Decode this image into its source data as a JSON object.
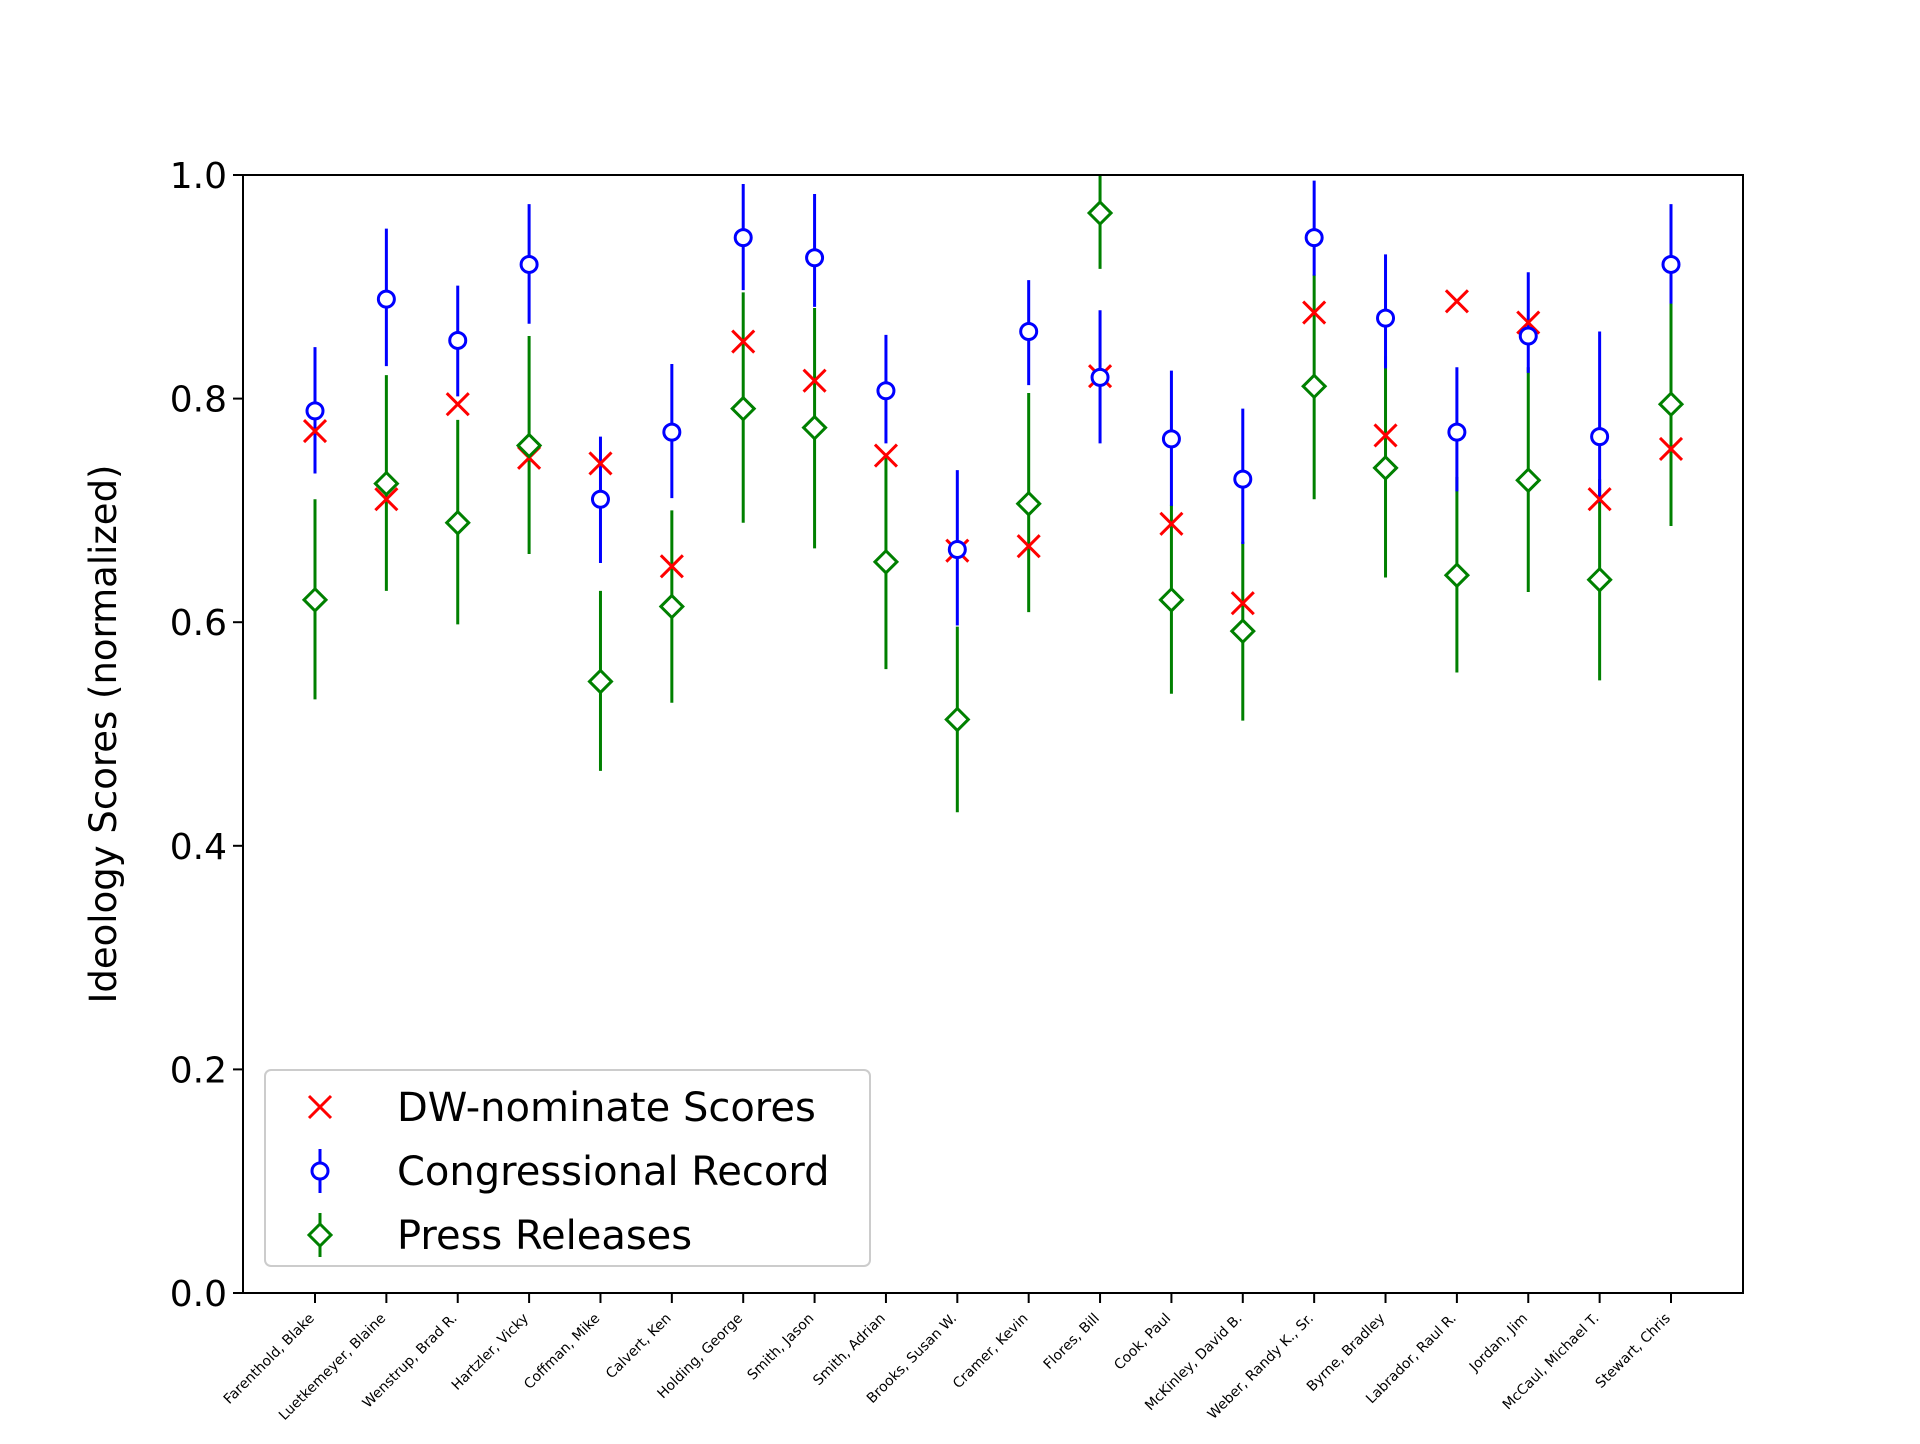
{
  "chart_data": {
    "type": "scatter",
    "title": "",
    "xlabel": "",
    "ylabel": "Ideology Scores (normalized)",
    "ylim": [
      0.0,
      1.0
    ],
    "yticks": [
      "0.0",
      "0.2",
      "0.4",
      "0.6",
      "0.8",
      "1.0"
    ],
    "grid": false,
    "legend_position": "lower-left",
    "categories": [
      "Farenthold, Blake",
      "Luetkemeyer, Blaine",
      "Wenstrup, Brad R.",
      "Hartzler, Vicky",
      "Coffman, Mike",
      "Calvert, Ken",
      "Holding, George",
      "Smith, Jason",
      "Smith, Adrian",
      "Brooks, Susan W.",
      "Cramer, Kevin",
      "Flores, Bill",
      "Cook, Paul",
      "McKinley, David B.",
      "Weber, Randy K., Sr.",
      "Byrne, Bradley",
      "Labrador, Raul R.",
      "Jordan, Jim",
      "McCaul, Michael T.",
      "Stewart, Chris"
    ],
    "series": [
      {
        "name": "DW-nominate Scores",
        "marker": "x",
        "color": "#ff0000",
        "values": [
          0.771,
          0.71,
          0.795,
          0.747,
          0.742,
          0.65,
          0.851,
          0.816,
          0.749,
          0.664,
          0.668,
          0.82,
          0.688,
          0.617,
          0.877,
          0.767,
          0.887,
          0.868,
          0.71,
          0.755
        ]
      },
      {
        "name": "Congressional Record",
        "marker": "o",
        "color": "#0000ff",
        "values": [
          0.789,
          0.889,
          0.852,
          0.92,
          0.71,
          0.77,
          0.944,
          0.926,
          0.807,
          0.665,
          0.86,
          0.819,
          0.764,
          0.728,
          0.944,
          0.872,
          0.77,
          0.856,
          0.766,
          0.92
        ],
        "err_low": [
          0.733,
          0.829,
          0.802,
          0.867,
          0.653,
          0.711,
          0.897,
          0.882,
          0.76,
          0.597,
          0.812,
          0.76,
          0.704,
          0.67,
          0.91,
          0.827,
          0.717,
          0.823,
          0.707,
          0.885
        ],
        "err_high": [
          0.846,
          0.952,
          0.901,
          0.974,
          0.766,
          0.831,
          0.992,
          0.983,
          0.857,
          0.736,
          0.906,
          0.879,
          0.825,
          0.791,
          0.995,
          0.929,
          0.828,
          0.913,
          0.86,
          0.974
        ]
      },
      {
        "name": "Press Releases",
        "marker": "D",
        "color": "#008000",
        "values": [
          0.62,
          0.724,
          0.689,
          0.758,
          0.547,
          0.614,
          0.791,
          0.774,
          0.654,
          0.513,
          0.706,
          0.966,
          0.62,
          0.592,
          0.811,
          0.738,
          0.642,
          0.727,
          0.638,
          0.795
        ],
        "err_low": [
          0.531,
          0.628,
          0.598,
          0.661,
          0.467,
          0.528,
          0.689,
          0.666,
          0.558,
          0.43,
          0.609,
          0.916,
          0.536,
          0.512,
          0.71,
          0.64,
          0.555,
          0.627,
          0.548,
          0.686
        ],
        "err_high": [
          0.71,
          0.821,
          0.781,
          0.856,
          0.628,
          0.7,
          0.895,
          0.881,
          0.751,
          0.596,
          0.805,
          1.0,
          0.705,
          0.672,
          0.911,
          0.838,
          0.73,
          0.828,
          0.728,
          0.904
        ]
      }
    ]
  }
}
